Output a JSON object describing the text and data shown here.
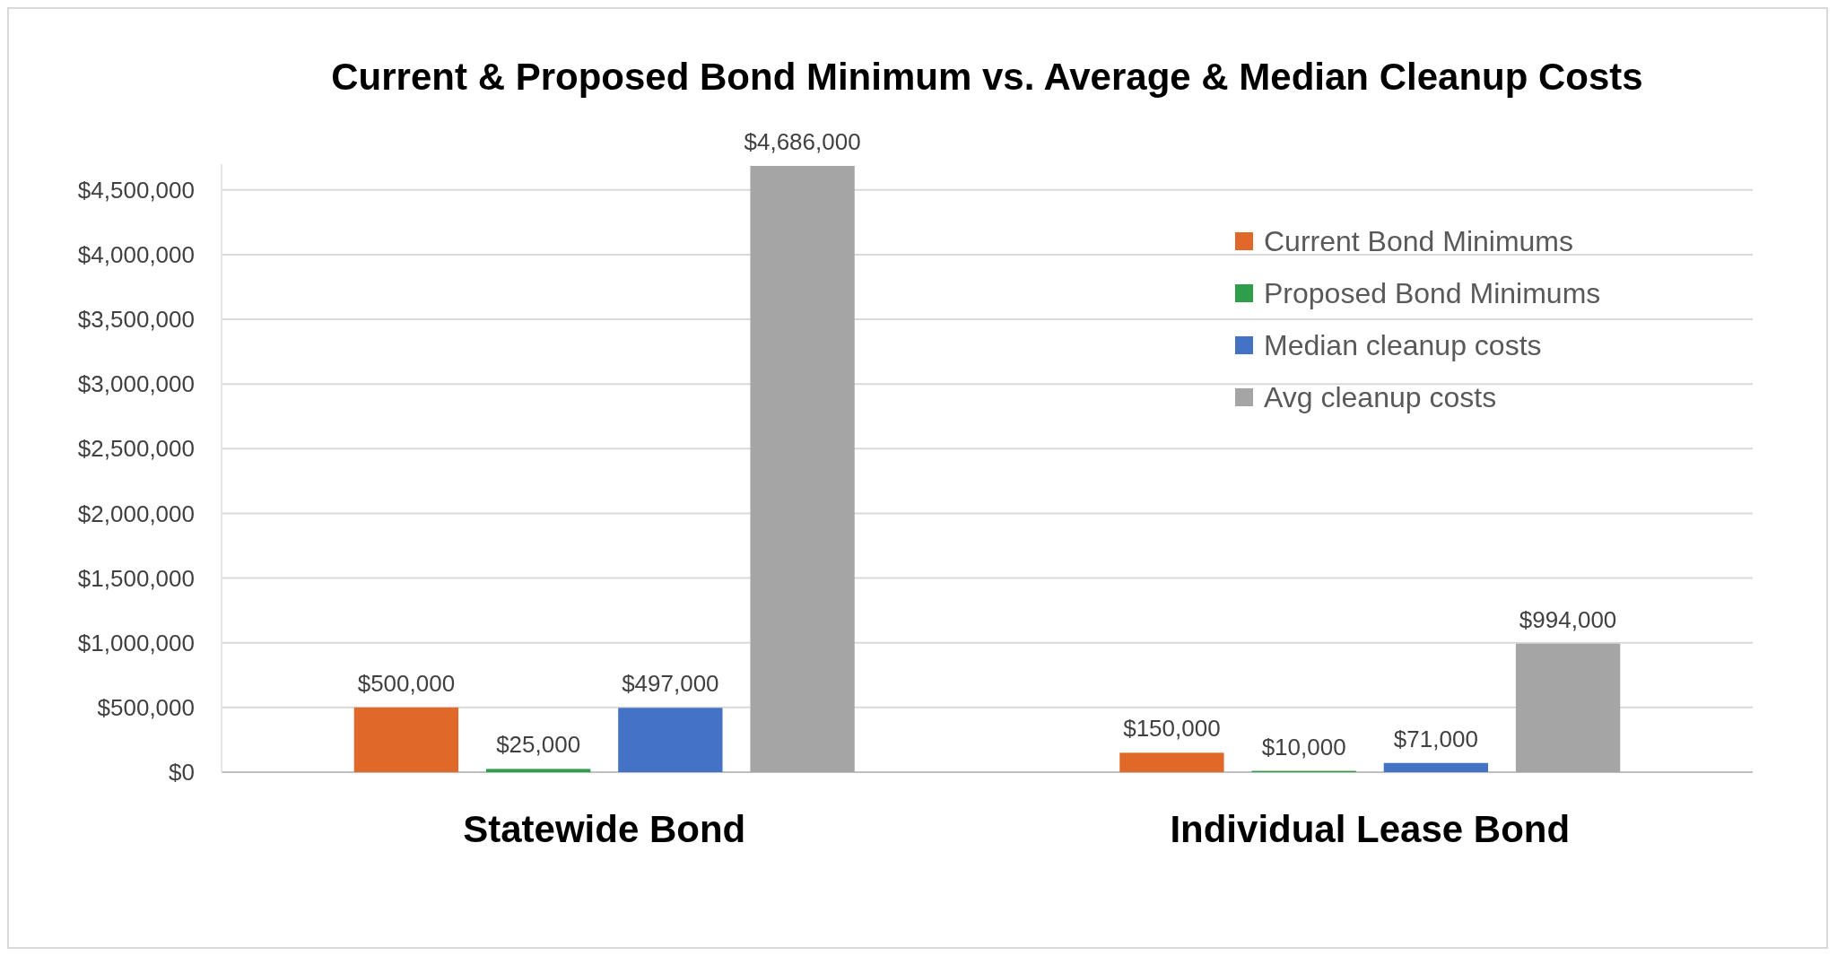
{
  "chart_data": {
    "type": "bar",
    "title": "Current & Proposed Bond Minimum vs. Average & Median Cleanup Costs",
    "categories": [
      "Statewide Bond",
      "Individual Lease Bond"
    ],
    "series": [
      {
        "name": "Current Bond Minimums",
        "color": "#e0692a",
        "values": [
          500000,
          150000
        ],
        "value_labels": [
          "$500,000",
          "$150,000"
        ]
      },
      {
        "name": "Proposed Bond Minimums",
        "color": "#2e9e4a",
        "values": [
          25000,
          10000
        ],
        "value_labels": [
          "$25,000",
          "$10,000"
        ]
      },
      {
        "name": "Median cleanup costs",
        "color": "#4472c4",
        "values": [
          497000,
          71000
        ],
        "value_labels": [
          "$497,000",
          "$71,000"
        ]
      },
      {
        "name": "Avg cleanup costs",
        "color": "#a5a5a5",
        "values": [
          4686000,
          994000
        ],
        "value_labels": [
          "$4,686,000",
          "$994,000"
        ]
      }
    ],
    "ylim": [
      0,
      4700000
    ],
    "yticks": [
      {
        "value": 0,
        "label": "$0"
      },
      {
        "value": 500000,
        "label": "$500,000"
      },
      {
        "value": 1000000,
        "label": "$1,000,000"
      },
      {
        "value": 1500000,
        "label": "$1,500,000"
      },
      {
        "value": 2000000,
        "label": "$2,000,000"
      },
      {
        "value": 2500000,
        "label": "$2,500,000"
      },
      {
        "value": 3000000,
        "label": "$3,000,000"
      },
      {
        "value": 3500000,
        "label": "$3,500,000"
      },
      {
        "value": 4000000,
        "label": "$4,000,000"
      },
      {
        "value": 4500000,
        "label": "$4,500,000"
      }
    ],
    "grid": "y",
    "legend": "top right"
  }
}
